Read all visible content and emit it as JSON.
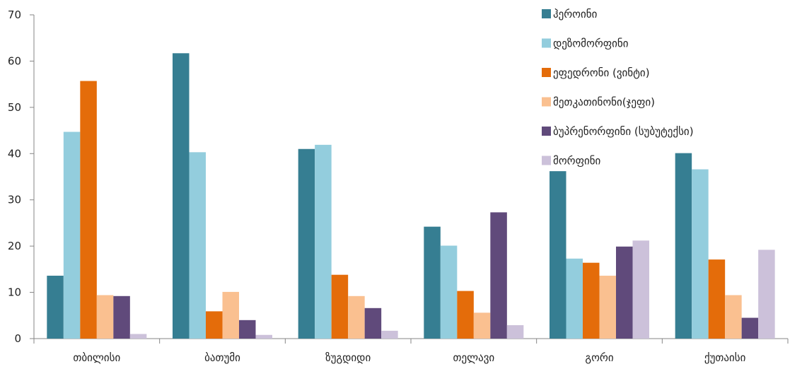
{
  "chart_data": {
    "type": "bar",
    "title": "",
    "xlabel": "",
    "ylabel": "",
    "ylim": [
      0,
      70
    ],
    "yticks": [
      0,
      10,
      20,
      30,
      40,
      50,
      60,
      70
    ],
    "grid": false,
    "legend_position": "top-right",
    "categories": [
      "თბილისი",
      "ბათუმი",
      "ზუგდიდი",
      "თელავი",
      "გორი",
      "ქუთაისი"
    ],
    "series": [
      {
        "name": "ჰეროინი",
        "color": "#367e92",
        "values": [
          13.6,
          61.7,
          41.0,
          24.2,
          36.2,
          40.1
        ]
      },
      {
        "name": "დეზომორფინი",
        "color": "#93cddd",
        "values": [
          44.7,
          40.3,
          41.9,
          20.1,
          17.3,
          36.6
        ]
      },
      {
        "name": "ეფედრონი (ვინტი)",
        "color": "#e46c0a",
        "values": [
          55.7,
          5.9,
          13.8,
          10.3,
          16.4,
          17.1
        ]
      },
      {
        "name": "მეთკათინონი(ჯეფი)",
        "color": "#fac090",
        "values": [
          9.4,
          10.1,
          9.2,
          5.6,
          13.6,
          9.4
        ]
      },
      {
        "name": "ბუპრენორფინი (სუბუტექსი)",
        "color": "#604a7b",
        "values": [
          9.2,
          4.0,
          6.6,
          27.3,
          19.9,
          4.5
        ]
      },
      {
        "name": "მორფინი",
        "color": "#ccc1da",
        "values": [
          1.0,
          0.8,
          1.7,
          2.9,
          21.2,
          19.2
        ]
      }
    ]
  }
}
